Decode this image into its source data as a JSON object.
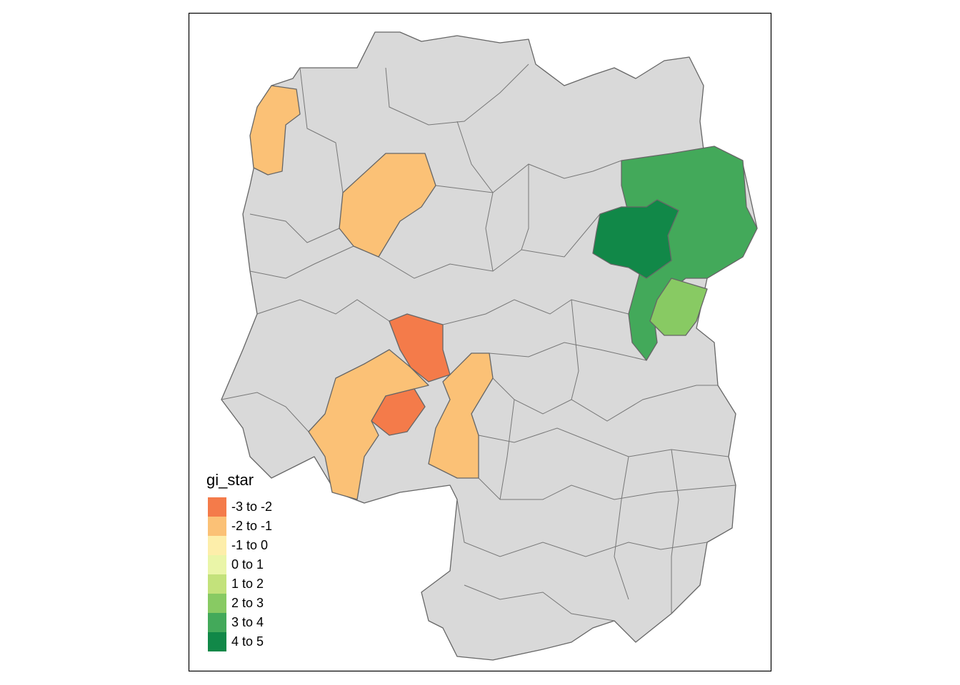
{
  "legend": {
    "title": "gi_star",
    "items": [
      {
        "label": "-3 to -2",
        "color": "#f47b4a"
      },
      {
        "label": "-2 to -1",
        "color": "#fbc176"
      },
      {
        "label": "-1 to 0",
        "color": "#fdeeaa"
      },
      {
        "label": "0 to 1",
        "color": "#eaf5a8"
      },
      {
        "label": "1 to 2",
        "color": "#c3e27b"
      },
      {
        "label": "2 to 3",
        "color": "#88ca63"
      },
      {
        "label": "3 to 4",
        "color": "#43a95a"
      },
      {
        "label": "4 to 5",
        "color": "#118848"
      }
    ]
  }
}
